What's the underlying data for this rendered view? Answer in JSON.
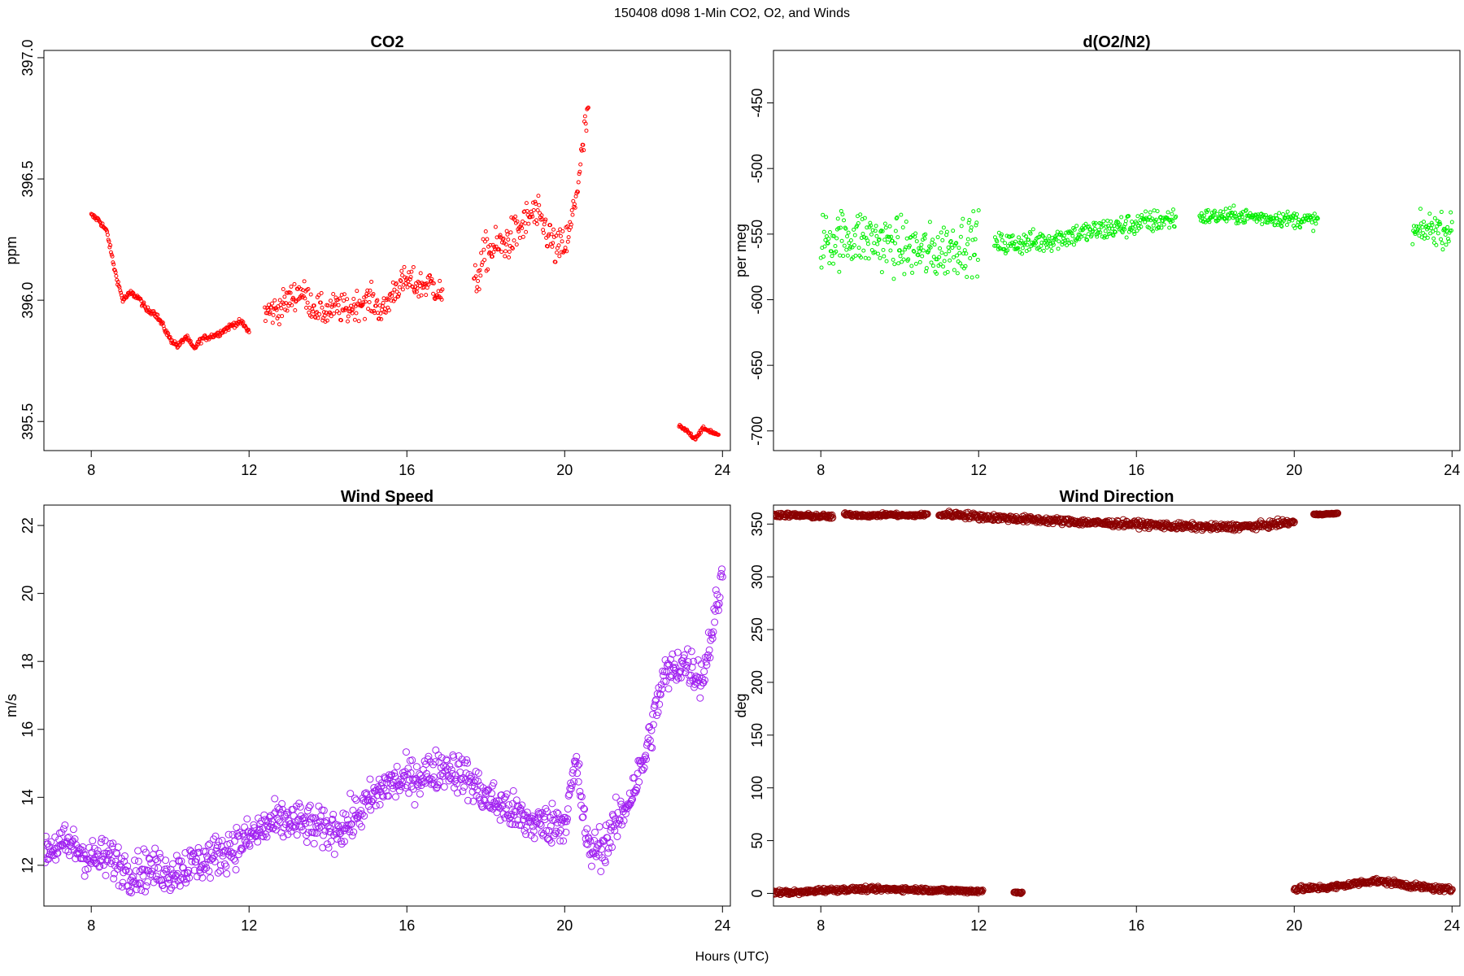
{
  "figure": {
    "title": "150408   d098   1-Min CO2, O2, and Winds",
    "xlabel": "Hours (UTC)"
  },
  "chart_data": [
    {
      "id": "co2",
      "type": "scatter",
      "title": "CO2",
      "ylabel": "ppm",
      "xlim": [
        6.8,
        24.2
      ],
      "ylim": [
        395.38,
        397.03
      ],
      "xticks": [
        8,
        12,
        16,
        20,
        24
      ],
      "yticks": [
        395.5,
        396.0,
        396.5,
        397.0
      ],
      "ytick_labels": [
        "395.5",
        "396.0",
        "396.5",
        "397.0"
      ],
      "color": "#ff0000",
      "marker_radius": 2,
      "segments": [
        {
          "x": [
            8.0,
            8.2,
            8.4,
            8.6,
            8.8,
            9.0,
            9.2,
            9.4,
            9.6,
            9.8,
            10.0,
            10.2,
            10.4,
            10.6,
            10.8,
            11.0,
            11.2,
            11.4,
            11.6,
            11.8,
            12.0
          ],
          "y": [
            396.35,
            396.33,
            396.28,
            396.12,
            396.0,
            396.03,
            396.01,
            395.96,
            395.95,
            395.9,
            395.84,
            395.81,
            395.85,
            395.8,
            395.84,
            395.85,
            395.86,
            395.88,
            395.9,
            395.91,
            395.87
          ],
          "noise": 0.012
        },
        {
          "x": [
            12.4,
            12.7,
            13.0,
            13.3,
            13.6,
            13.9,
            14.2,
            14.5,
            14.8,
            15.1,
            15.4,
            15.7,
            16.0,
            16.3,
            16.6,
            16.9
          ],
          "y": [
            395.95,
            395.96,
            396.0,
            396.04,
            395.98,
            395.95,
            395.97,
            395.96,
            395.99,
            396.0,
            395.95,
            396.05,
            396.08,
            396.06,
            396.07,
            396.02
          ],
          "noise": 0.06
        },
        {
          "x": [
            17.7,
            18.0,
            18.3,
            18.6,
            18.9,
            19.2,
            19.5,
            19.8,
            20.1,
            20.4,
            20.6
          ],
          "y": [
            396.05,
            396.2,
            396.22,
            396.25,
            396.3,
            396.36,
            396.3,
            396.2,
            396.25,
            396.55,
            396.8
          ],
          "noise": 0.08
        },
        {
          "x": [
            22.9,
            23.1,
            23.3,
            23.5,
            23.7,
            23.9
          ],
          "y": [
            395.48,
            395.46,
            395.43,
            395.47,
            395.46,
            395.44
          ],
          "noise": 0.008
        }
      ]
    },
    {
      "id": "o2",
      "type": "scatter",
      "title": "d(O2/N2)",
      "ylabel": "per meg",
      "xlim": [
        6.8,
        24.2
      ],
      "ylim": [
        -715,
        -410
      ],
      "xticks": [
        8,
        12,
        16,
        20,
        24
      ],
      "yticks": [
        -700,
        -650,
        -600,
        -550,
        -500,
        -450
      ],
      "ytick_labels": [
        "-700",
        "-650",
        "-600",
        "-550",
        "-500",
        "-450"
      ],
      "color": "#00ee00",
      "marker_radius": 2,
      "segments": [
        {
          "x": [
            8.0,
            9.0,
            10.0,
            10.8,
            11.5,
            12.0
          ],
          "y": [
            -555,
            -552,
            -560,
            -565,
            -558,
            -555
          ],
          "noise": 22
        },
        {
          "x": [
            12.4,
            13.5,
            14.5,
            15.5,
            16.5,
            17.0
          ],
          "y": [
            -558,
            -556,
            -550,
            -545,
            -540,
            -538
          ],
          "noise": 9
        },
        {
          "x": [
            17.6,
            18.5,
            19.5,
            20.6
          ],
          "y": [
            -537,
            -536,
            -538,
            -540
          ],
          "noise": 6
        },
        {
          "x": [
            23.0,
            23.5,
            24.0
          ],
          "y": [
            -550,
            -545,
            -548
          ],
          "noise": 12
        }
      ]
    },
    {
      "id": "wind-speed",
      "type": "scatter",
      "title": "Wind Speed",
      "ylabel": "m/s",
      "xlim": [
        6.8,
        24.2
      ],
      "ylim": [
        10.8,
        22.6
      ],
      "xticks": [
        8,
        12,
        16,
        20,
        24
      ],
      "yticks": [
        12,
        14,
        16,
        18,
        20,
        22
      ],
      "ytick_labels": [
        "12",
        "14",
        "16",
        "18",
        "20",
        "22"
      ],
      "color": "#a020f0",
      "marker_radius": 4,
      "segments": [
        {
          "x": [
            6.8,
            7.5,
            8.0,
            8.5,
            9.0,
            9.5,
            10.0,
            10.5,
            11.0,
            11.5,
            12.0,
            12.5,
            13.0,
            13.5,
            14.0,
            14.5,
            15.0,
            15.5,
            16.0,
            16.5,
            17.0,
            17.5,
            18.0,
            18.5,
            19.0,
            19.5,
            20.0,
            20.3,
            20.6,
            21.0,
            21.5,
            22.0,
            22.5,
            23.0,
            23.5,
            24.0
          ],
          "y": [
            12.5,
            12.6,
            12.2,
            12.2,
            11.8,
            11.9,
            11.8,
            12.0,
            12.2,
            12.5,
            12.8,
            13.2,
            13.3,
            13.2,
            13.0,
            13.2,
            13.8,
            14.4,
            14.5,
            14.7,
            14.9,
            14.6,
            14.0,
            13.7,
            13.3,
            13.2,
            13.3,
            15.0,
            12.4,
            12.6,
            13.6,
            15.0,
            17.5,
            18.0,
            17.5,
            20.5
          ],
          "noise": 0.6
        }
      ]
    },
    {
      "id": "wind-direction",
      "type": "scatter",
      "title": "Wind Direction",
      "ylabel": "deg",
      "xlim": [
        6.8,
        24.2
      ],
      "ylim": [
        -12,
        368
      ],
      "xticks": [
        8,
        12,
        16,
        20,
        24
      ],
      "yticks": [
        0,
        50,
        100,
        150,
        200,
        250,
        300,
        350
      ],
      "ytick_labels": [
        "0",
        "50",
        "100",
        "150",
        "200",
        "250",
        "300",
        "350"
      ],
      "color": "#8b0000",
      "marker_radius": 4,
      "segments": [
        {
          "x": [
            6.8,
            7.5,
            8.3
          ],
          "y": [
            359,
            358,
            357
          ],
          "noise": 2
        },
        {
          "x": [
            8.6,
            9.3,
            9.7,
            10.2,
            10.7
          ],
          "y": [
            359,
            358,
            359,
            358,
            359
          ],
          "noise": 1.5
        },
        {
          "x": [
            11.0,
            11.5,
            12.0,
            13.0,
            14.0,
            15.0,
            16.0,
            17.0,
            18.0,
            19.0,
            20.0
          ],
          "y": [
            359,
            359,
            357,
            355,
            353,
            351,
            350,
            348,
            347,
            348,
            352
          ],
          "noise": 3
        },
        {
          "x": [
            20.5,
            21.1
          ],
          "y": [
            359,
            360
          ],
          "noise": 0.5
        },
        {
          "x": [
            6.8,
            7.5,
            8.0,
            9.0,
            10.0,
            11.0,
            12.1
          ],
          "y": [
            1,
            1,
            3,
            4,
            4,
            3,
            2
          ],
          "noise": 2
        },
        {
          "x": [
            12.9,
            13.1
          ],
          "y": [
            1,
            1
          ],
          "noise": 1
        },
        {
          "x": [
            20.0,
            21.0,
            22.0,
            22.5,
            23.0,
            24.0
          ],
          "y": [
            4,
            6,
            12,
            10,
            7,
            3
          ],
          "noise": 2.5
        }
      ]
    }
  ]
}
